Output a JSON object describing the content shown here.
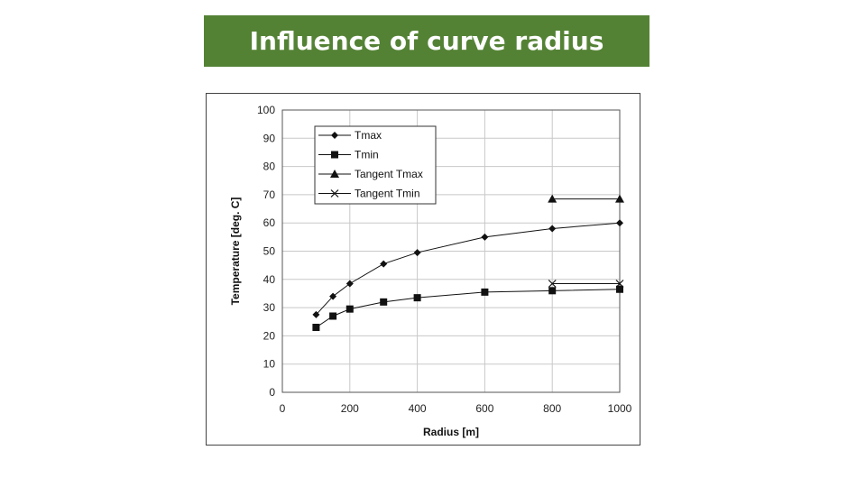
{
  "title": "Influence of curve radius",
  "chart_data": {
    "type": "line",
    "xlabel": "Radius [m]",
    "ylabel": "Temperature [deg. C]",
    "xlim": [
      0,
      1000
    ],
    "ylim": [
      0,
      100
    ],
    "x_ticks": [
      0,
      200,
      400,
      600,
      800,
      1000
    ],
    "y_ticks": [
      0,
      10,
      20,
      30,
      40,
      50,
      60,
      70,
      80,
      90,
      100
    ],
    "grid": true,
    "legend_position": "top-left",
    "series": [
      {
        "name": "Tmax",
        "marker": "diamond",
        "line": true,
        "x": [
          100,
          150,
          200,
          300,
          400,
          600,
          800,
          1000
        ],
        "y": [
          27.5,
          34,
          38.5,
          45.5,
          49.5,
          55,
          58,
          60
        ]
      },
      {
        "name": "Tmin",
        "marker": "square",
        "line": true,
        "x": [
          100,
          150,
          200,
          300,
          400,
          600,
          800,
          1000
        ],
        "y": [
          23,
          27,
          29.5,
          32,
          33.5,
          35.5,
          36,
          36.5
        ]
      },
      {
        "name": "Tangent Tmax",
        "marker": "triangle",
        "line": true,
        "x": [
          800,
          1000
        ],
        "y": [
          68.5,
          68.5
        ]
      },
      {
        "name": "Tangent Tmin",
        "marker": "x",
        "line": true,
        "x": [
          800,
          1000
        ],
        "y": [
          38.5,
          38.5
        ]
      }
    ]
  }
}
